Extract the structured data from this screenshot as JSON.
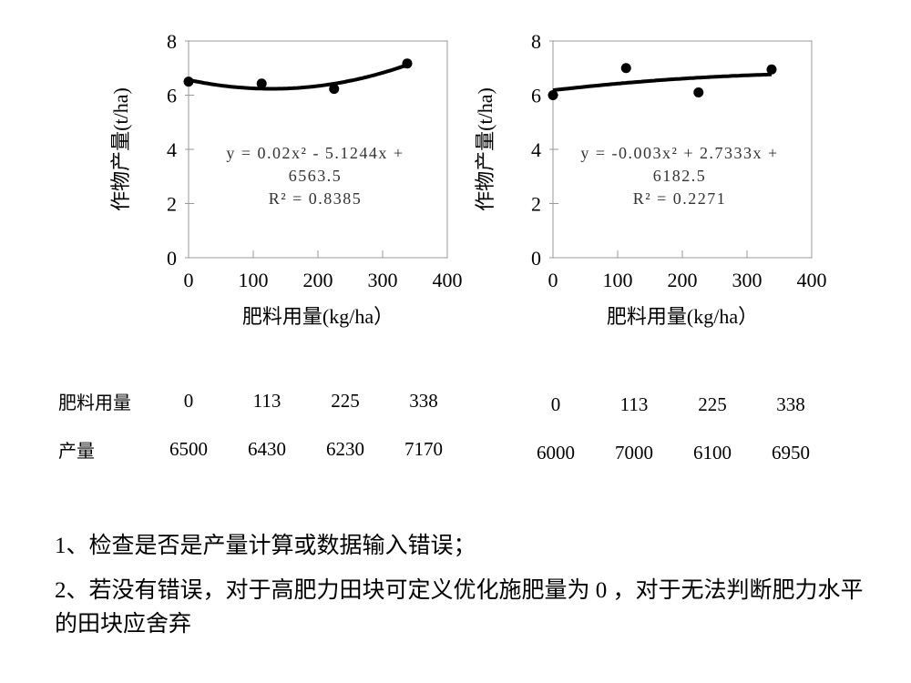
{
  "palette": {
    "background": "#ffffff",
    "text": "#000000",
    "axis_line": "#999999",
    "trendline": "#000000",
    "marker": "#000000",
    "equation_text": "#333333"
  },
  "chart_data": [
    {
      "type": "scatter",
      "x": [
        0,
        113,
        225,
        338
      ],
      "y": [
        6.5,
        6.43,
        6.23,
        7.17
      ],
      "series_unit": "t/ha",
      "trendline": {
        "kind": "quadratic",
        "a": 0.02,
        "b": -5.1244,
        "c": 6563.5,
        "scale": 0.001,
        "x_range": [
          0,
          338
        ]
      },
      "equation_lines": [
        "y = 0.02x² - 5.1244x +",
        "6563.5",
        "R² = 0.8385"
      ],
      "title": "",
      "xlabel": "肥料用量(kg/ha）",
      "ylabel": "作物产量(t/ha)",
      "xlim": [
        0,
        400
      ],
      "ylim": [
        0,
        8
      ],
      "xticks": [
        0,
        100,
        200,
        300,
        400
      ],
      "yticks": [
        0,
        2,
        4,
        6,
        8
      ],
      "grid": false,
      "legend": "none"
    },
    {
      "type": "scatter",
      "x": [
        0,
        113,
        225,
        338
      ],
      "y": [
        6.0,
        7.0,
        6.1,
        6.95
      ],
      "series_unit": "t/ha",
      "trendline": {
        "kind": "quadratic",
        "a": -0.003,
        "b": 2.7333,
        "c": 6182.5,
        "scale": 0.001,
        "x_range": [
          0,
          338
        ]
      },
      "equation_lines": [
        "y = -0.003x² + 2.7333x +",
        "6182.5",
        "R² = 0.2271"
      ],
      "title": "",
      "xlabel": "肥料用量(kg/ha）",
      "ylabel": "作物产量(t/ha)",
      "xlim": [
        0,
        400
      ],
      "ylim": [
        0,
        8
      ],
      "xticks": [
        0,
        100,
        200,
        300,
        400
      ],
      "yticks": [
        0,
        2,
        4,
        6,
        8
      ],
      "grid": false,
      "legend": "none"
    }
  ],
  "tables": {
    "left": {
      "rows": [
        {
          "label": "肥料用量",
          "values": [
            "0",
            "113",
            "225",
            "338"
          ]
        },
        {
          "label": "产量",
          "values": [
            "6500",
            "6430",
            "6230",
            "7170"
          ]
        }
      ]
    },
    "right": {
      "rows": [
        {
          "values": [
            "0",
            "113",
            "225",
            "338"
          ]
        },
        {
          "values": [
            "6000",
            "7000",
            "6100",
            "6950"
          ]
        }
      ]
    }
  },
  "notes": {
    "note1": "1、检查是否是产量计算或数据输入错误；",
    "note2": "2、若没有错误，对于高肥力田块可定义优化施肥量为 0 ，对于无法判断肥力水平的田块应舍弃"
  }
}
